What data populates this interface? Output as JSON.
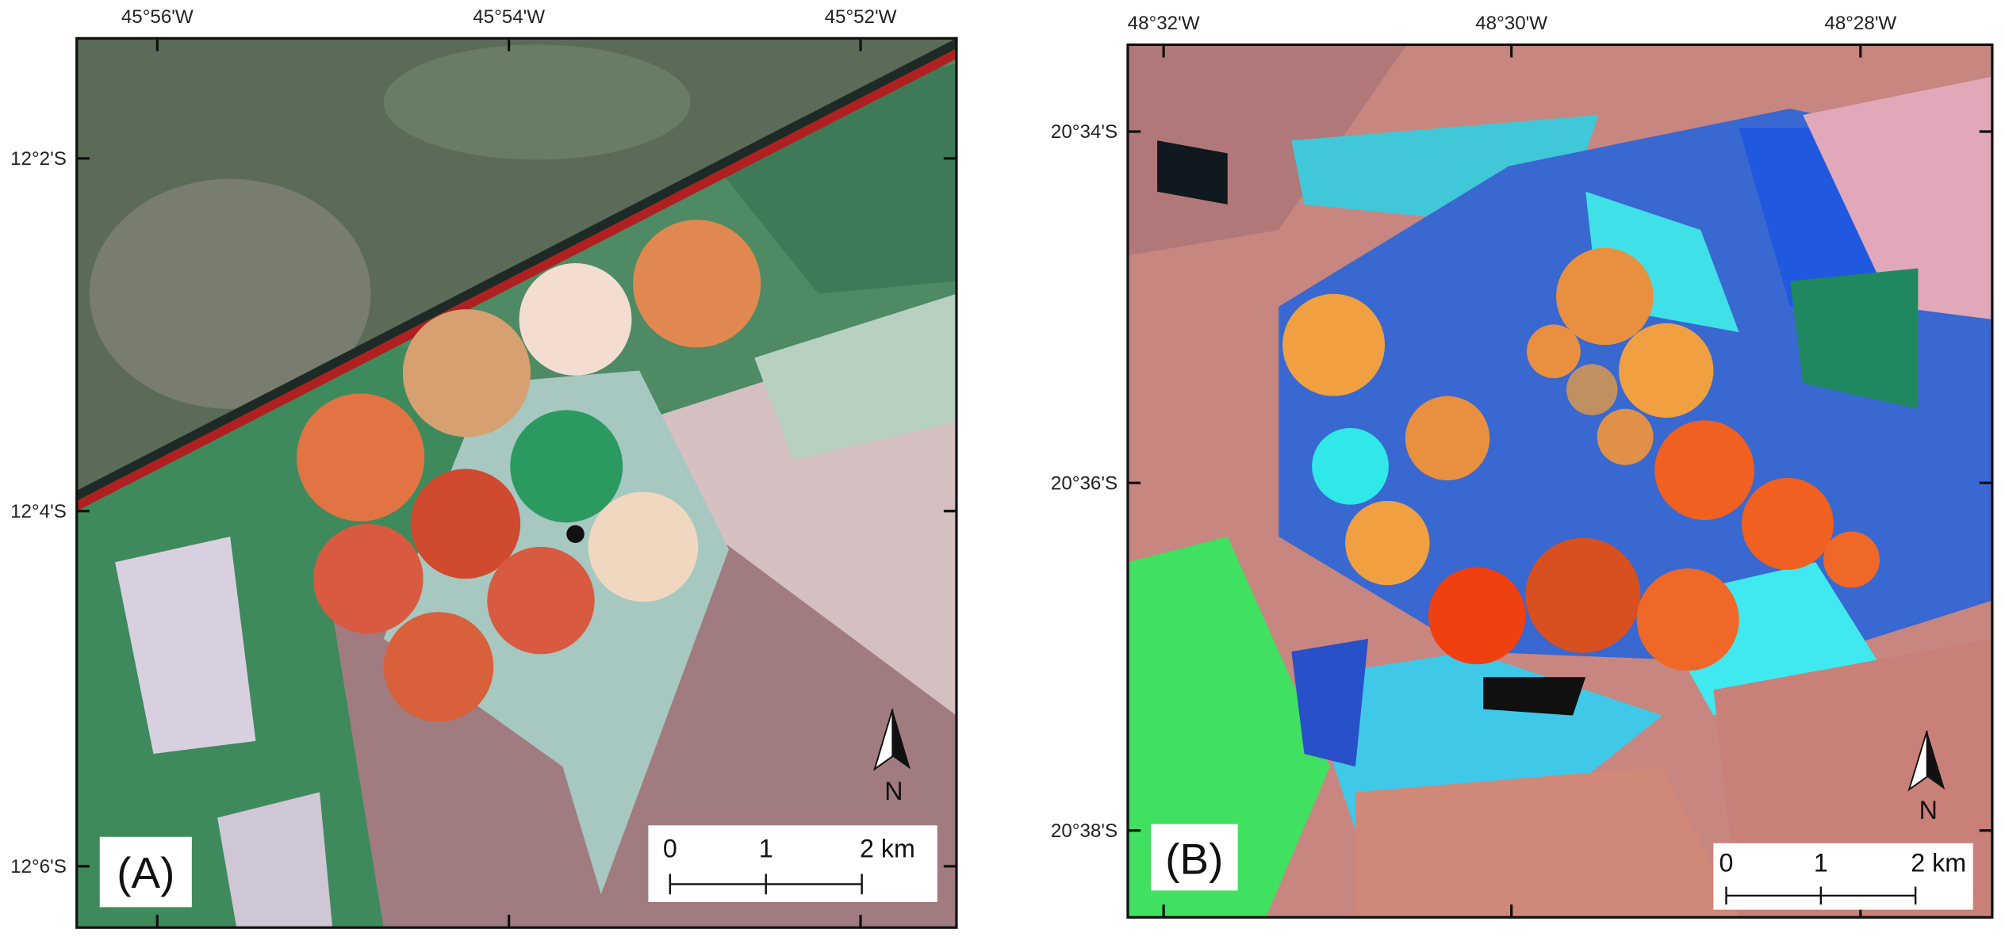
{
  "panels": [
    {
      "label": "(A)",
      "lon_labels": [
        "45°56'W",
        "45°54'W",
        "45°52'W"
      ],
      "lat_labels": [
        "12°2'S",
        "12°4'S",
        "12°6'S"
      ],
      "scale_labels": [
        "0",
        "1",
        "2 km"
      ],
      "north": "N"
    },
    {
      "label": "(B)",
      "lon_labels": [
        "48°32'W",
        "48°30'W",
        "48°28'W"
      ],
      "lat_labels": [
        "20°34'S",
        "20°36'S",
        "20°38'S"
      ],
      "scale_labels": [
        "0",
        "1",
        "2 km"
      ],
      "north": "N"
    }
  ]
}
